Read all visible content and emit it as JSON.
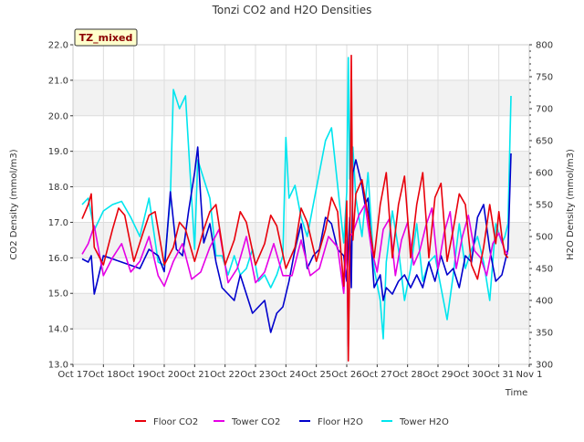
{
  "chart_data": {
    "type": "line",
    "title": "Tonzi CO2 and H2O Densities",
    "badge": "TZ_mixed",
    "xlabel": "Time",
    "ylabel_left": "CO2 Density (mmol/m3)",
    "ylabel_right": "H2O Density (mmol/m3)",
    "x_tick_labels": [
      "Oct 17",
      "Oct 18",
      "Oct 19",
      "Oct 20",
      "Oct 21",
      "Oct 22",
      "Oct 23",
      "Oct 24",
      "Oct 25",
      "Oct 26",
      "Oct 27",
      "Oct 28",
      "Oct 29",
      "Oct 30",
      "Oct 31",
      "Nov 1"
    ],
    "xlim_days": [
      0,
      15
    ],
    "ylim_left": [
      13.0,
      22.0
    ],
    "y_ticks_left": [
      "13.0",
      "14.0",
      "15.0",
      "16.0",
      "17.0",
      "18.0",
      "19.0",
      "20.0",
      "21.0",
      "22.0"
    ],
    "ylim_right": [
      300,
      800
    ],
    "y_ticks_right": [
      "300",
      "350",
      "400",
      "450",
      "500",
      "550",
      "600",
      "650",
      "700",
      "750",
      "800"
    ],
    "grid": true,
    "legend_position": "bottom-center",
    "series": [
      {
        "name": "Floor CO2",
        "axis": "left",
        "color": "#e8000b",
        "x": [
          0.3,
          0.5,
          0.6,
          0.7,
          1.0,
          1.3,
          1.5,
          1.7,
          2.0,
          2.3,
          2.5,
          2.7,
          3.0,
          3.3,
          3.5,
          3.7,
          4.0,
          4.3,
          4.5,
          4.7,
          5.0,
          5.3,
          5.5,
          5.7,
          6.0,
          6.3,
          6.5,
          6.7,
          7.0,
          7.3,
          7.5,
          7.7,
          8.0,
          8.3,
          8.5,
          8.7,
          8.9,
          9.0,
          9.05,
          9.1,
          9.15,
          9.2,
          9.3,
          9.5,
          9.7,
          9.9,
          10.1,
          10.3,
          10.5,
          10.7,
          10.9,
          11.1,
          11.3,
          11.5,
          11.7,
          11.9,
          12.1,
          12.3,
          12.5,
          12.7,
          12.9,
          13.1,
          13.3,
          13.5,
          13.7,
          13.9,
          14.0,
          14.1,
          14.2,
          14.3
        ],
        "values": [
          17.1,
          17.5,
          17.8,
          16.3,
          15.8,
          16.8,
          17.4,
          17.2,
          15.9,
          16.7,
          17.2,
          17.3,
          15.8,
          16.3,
          17.0,
          16.8,
          15.9,
          16.8,
          17.3,
          17.5,
          15.8,
          16.5,
          17.3,
          17.0,
          15.8,
          16.4,
          17.2,
          16.9,
          15.7,
          16.3,
          17.4,
          17.0,
          15.9,
          16.8,
          17.7,
          17.3,
          15.2,
          17.6,
          13.1,
          16.0,
          21.7,
          16.5,
          17.8,
          18.2,
          17.2,
          16.0,
          17.5,
          18.4,
          16.0,
          17.5,
          18.3,
          16.0,
          17.5,
          18.4,
          16.0,
          17.7,
          18.1,
          15.9,
          16.8,
          17.8,
          17.5,
          15.8,
          15.4,
          16.3,
          17.5,
          16.4,
          17.3,
          16.6,
          16.1,
          16.0
        ]
      },
      {
        "name": "Tower CO2",
        "axis": "left",
        "color": "#e500e5",
        "x": [
          0.3,
          0.5,
          0.7,
          1.0,
          1.3,
          1.6,
          1.9,
          2.2,
          2.5,
          2.8,
          3.0,
          3.3,
          3.6,
          3.9,
          4.2,
          4.5,
          4.8,
          5.1,
          5.4,
          5.7,
          6.0,
          6.3,
          6.6,
          6.9,
          7.2,
          7.5,
          7.8,
          8.1,
          8.4,
          8.7,
          8.9,
          9.0,
          9.05,
          9.1,
          9.2,
          9.4,
          9.6,
          9.8,
          10.0,
          10.2,
          10.4,
          10.6,
          10.8,
          11.0,
          11.2,
          11.4,
          11.6,
          11.8,
          12.0,
          12.2,
          12.4,
          12.6,
          12.8,
          13.0,
          13.2,
          13.4,
          13.6,
          13.8,
          14.0,
          14.2,
          14.3
        ],
        "values": [
          16.1,
          16.4,
          16.9,
          15.5,
          16.0,
          16.4,
          15.6,
          15.9,
          16.6,
          15.5,
          15.2,
          15.9,
          16.4,
          15.4,
          15.6,
          16.3,
          16.8,
          15.3,
          15.7,
          16.6,
          15.3,
          15.6,
          16.4,
          15.5,
          15.5,
          16.5,
          15.5,
          15.7,
          16.6,
          16.3,
          15.0,
          16.5,
          13.5,
          16.6,
          16.7,
          17.2,
          17.5,
          16.3,
          15.6,
          16.8,
          17.1,
          15.5,
          16.5,
          17.0,
          15.8,
          16.2,
          16.9,
          17.4,
          15.7,
          16.7,
          17.3,
          15.7,
          16.6,
          17.2,
          16.2,
          16.0,
          15.5,
          16.4,
          16.7,
          16.2,
          16.1
        ]
      },
      {
        "name": "Floor H2O",
        "axis": "right",
        "color": "#0000cc",
        "x": [
          0.3,
          0.5,
          0.6,
          0.7,
          0.8,
          1.0,
          1.3,
          1.6,
          1.9,
          2.2,
          2.5,
          2.8,
          3.0,
          3.2,
          3.4,
          3.6,
          3.8,
          4.0,
          4.1,
          4.2,
          4.3,
          4.5,
          4.7,
          4.9,
          5.1,
          5.3,
          5.5,
          5.7,
          5.9,
          6.1,
          6.3,
          6.5,
          6.7,
          6.9,
          7.1,
          7.3,
          7.5,
          7.7,
          7.9,
          8.1,
          8.3,
          8.5,
          8.7,
          8.9,
          9.0,
          9.05,
          9.1,
          9.15,
          9.2,
          9.3,
          9.5,
          9.6,
          9.7,
          9.9,
          10.1,
          10.2,
          10.3,
          10.5,
          10.7,
          10.9,
          11.1,
          11.3,
          11.5,
          11.7,
          11.9,
          12.1,
          12.3,
          12.5,
          12.7,
          12.9,
          13.1,
          13.3,
          13.5,
          13.7,
          13.9,
          14.1,
          14.3,
          14.4
        ],
        "values": [
          465,
          460,
          470,
          410,
          430,
          470,
          465,
          460,
          455,
          450,
          480,
          470,
          445,
          570,
          480,
          470,
          540,
          600,
          640,
          560,
          490,
          520,
          460,
          420,
          410,
          400,
          440,
          410,
          380,
          390,
          400,
          350,
          380,
          390,
          430,
          480,
          520,
          450,
          470,
          480,
          530,
          520,
          480,
          470,
          430,
          480,
          530,
          420,
          600,
          620,
          580,
          550,
          560,
          420,
          440,
          400,
          420,
          410,
          430,
          440,
          420,
          440,
          420,
          460,
          430,
          470,
          440,
          450,
          420,
          470,
          460,
          530,
          550,
          480,
          430,
          440,
          480,
          630
        ]
      },
      {
        "name": "Tower H2O",
        "axis": "right",
        "color": "#00e5ee",
        "x": [
          0.3,
          0.5,
          0.7,
          1.0,
          1.3,
          1.6,
          1.9,
          2.2,
          2.5,
          2.8,
          3.0,
          3.2,
          3.3,
          3.5,
          3.7,
          3.9,
          4.0,
          4.1,
          4.3,
          4.5,
          4.7,
          4.9,
          5.1,
          5.3,
          5.5,
          5.7,
          5.9,
          6.1,
          6.3,
          6.5,
          6.7,
          6.9,
          7.0,
          7.1,
          7.3,
          7.5,
          7.7,
          7.9,
          8.1,
          8.3,
          8.5,
          8.7,
          8.9,
          9.0,
          9.05,
          9.1,
          9.2,
          9.3,
          9.5,
          9.7,
          9.9,
          10.1,
          10.2,
          10.3,
          10.5,
          10.7,
          10.9,
          11.1,
          11.3,
          11.5,
          11.7,
          11.9,
          12.1,
          12.3,
          12.5,
          12.7,
          12.9,
          13.1,
          13.3,
          13.5,
          13.7,
          13.9,
          14.1,
          14.2,
          14.3,
          14.4
        ],
        "values": [
          550,
          560,
          510,
          540,
          550,
          555,
          530,
          500,
          560,
          460,
          455,
          560,
          730,
          700,
          720,
          560,
          480,
          620,
          590,
          560,
          470,
          470,
          440,
          470,
          440,
          450,
          480,
          430,
          440,
          420,
          440,
          470,
          655,
          560,
          580,
          530,
          500,
          550,
          600,
          650,
          670,
          580,
          490,
          570,
          780,
          590,
          640,
          560,
          500,
          600,
          450,
          400,
          340,
          460,
          540,
          480,
          400,
          450,
          520,
          430,
          460,
          470,
          420,
          370,
          440,
          520,
          450,
          480,
          500,
          460,
          400,
          520,
          490,
          500,
          520,
          720
        ]
      }
    ]
  }
}
